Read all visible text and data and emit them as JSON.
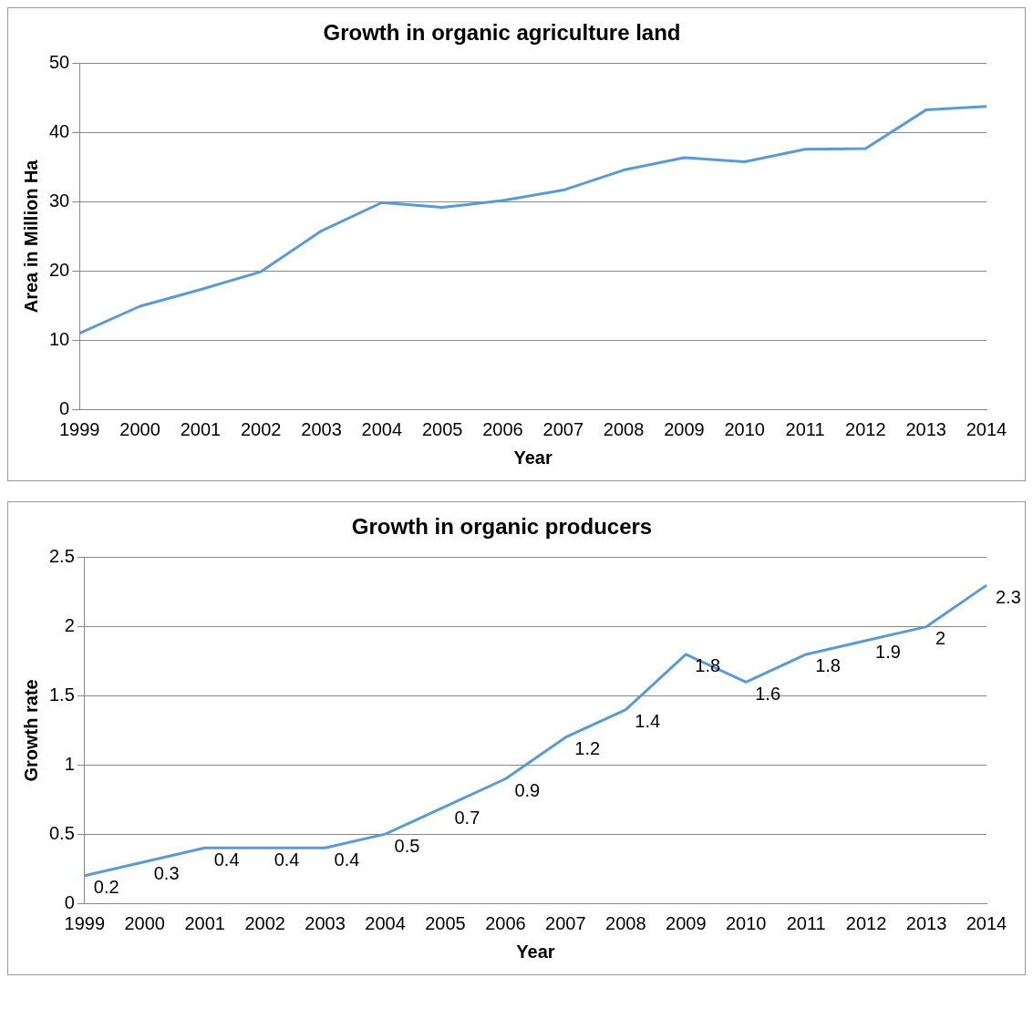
{
  "chart_data": [
    {
      "type": "line",
      "title": "Growth in organic agriculture land",
      "xlabel": "Year",
      "ylabel": "Area in Million Ha",
      "categories": [
        "1999",
        "2000",
        "2001",
        "2002",
        "2003",
        "2004",
        "2005",
        "2006",
        "2007",
        "2008",
        "2009",
        "2010",
        "2011",
        "2012",
        "2013",
        "2014"
      ],
      "series": [
        {
          "color": "#5b9bd5",
          "values": [
            11,
            14.9,
            17.3,
            19.9,
            25.8,
            29.9,
            29.2,
            30.2,
            31.7,
            34.6,
            36.4,
            35.8,
            37.6,
            37.7,
            43.3,
            43.8
          ]
        }
      ],
      "ylim": [
        0,
        50
      ],
      "yticks": [
        0,
        10,
        20,
        30,
        40,
        50
      ],
      "grid": "y",
      "legend": false,
      "marker": "none",
      "line_style": "solid"
    },
    {
      "type": "line",
      "title": "Growth in organic producers",
      "xlabel": "Year",
      "ylabel": "Growth rate",
      "categories": [
        "1999",
        "2000",
        "2001",
        "2002",
        "2003",
        "2004",
        "2005",
        "2006",
        "2007",
        "2008",
        "2009",
        "2010",
        "2011",
        "2012",
        "2013",
        "2014"
      ],
      "series": [
        {
          "color": "#5b9bd5",
          "values": [
            0.2,
            0.3,
            0.4,
            0.4,
            0.4,
            0.5,
            0.7,
            0.9,
            1.2,
            1.4,
            1.8,
            1.6,
            1.8,
            1.9,
            2,
            2.3
          ]
        }
      ],
      "ylim": [
        0,
        2.5
      ],
      "yticks": [
        0,
        0.5,
        1,
        1.5,
        2,
        2.5
      ],
      "grid": "y",
      "legend": false,
      "marker": "none",
      "line_style": "solid",
      "data_labels": true
    }
  ]
}
